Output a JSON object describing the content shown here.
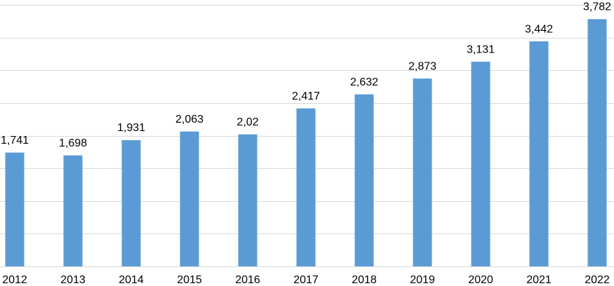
{
  "chart_data": {
    "type": "bar",
    "categories": [
      "2012",
      "2013",
      "2014",
      "2015",
      "2016",
      "2017",
      "2018",
      "2019",
      "2020",
      "2021",
      "2022"
    ],
    "values": [
      1.741,
      1.698,
      1.931,
      2.063,
      2.02,
      2.417,
      2.632,
      2.873,
      3.131,
      3.442,
      3.782
    ],
    "value_labels": [
      "1,741",
      "1,698",
      "1,931",
      "2,063",
      "2,02",
      "2,417",
      "2,632",
      "2,873",
      "3,131",
      "3,442",
      "3,782"
    ],
    "color": "#5b9bd5",
    "ylim": [
      0,
      4
    ],
    "yticks": [
      0,
      0.5,
      1,
      1.5,
      2,
      2.5,
      3,
      3.5,
      4
    ],
    "grid": true
  }
}
